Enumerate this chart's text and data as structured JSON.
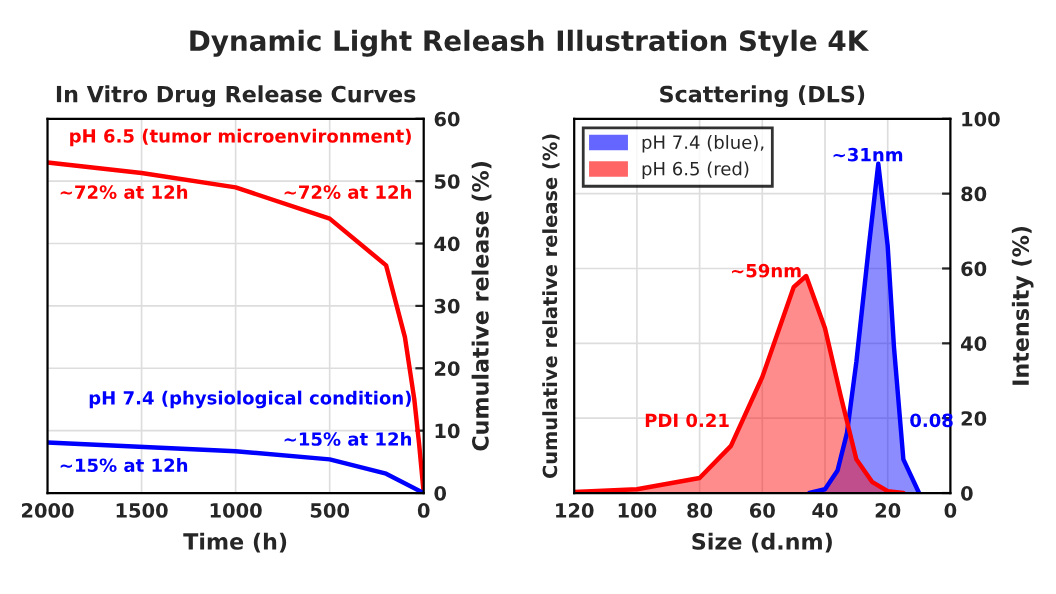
{
  "chart_data": [
    {
      "type": "line",
      "title": "Dynamic Light Releash Illustration Style 4K",
      "subtitle": "In Vitro Drug Release Curves",
      "xlabel": "Time (h)",
      "ylabel": "Cumulative release (%)",
      "xlim": [
        2000,
        0
      ],
      "xticks": [
        2000,
        1500,
        1000,
        500,
        0
      ],
      "ylim": [
        0,
        60
      ],
      "yticks": [
        0,
        10,
        20,
        30,
        40,
        50,
        60
      ],
      "grid": true,
      "series": [
        {
          "color": "#ff0000",
          "x": [
            0,
            25,
            50,
            100,
            200,
            500,
            1000,
            1500,
            2000
          ],
          "values": [
            0,
            8,
            15,
            25,
            36.5,
            44,
            49,
            51.3,
            53
          ]
        },
        {
          "color": "#0000ff",
          "x": [
            0,
            200,
            500,
            1000,
            2000
          ],
          "values": [
            0,
            3.1,
            5.4,
            6.7,
            8.1
          ]
        }
      ],
      "annotations": [
        "pH 6.5 (tumor microenvironment)",
        "~72% at 12h",
        "~72% at 12h",
        "pH 7.4 (physiological condition)",
        "~15% at 12h",
        "~15% at 12h"
      ]
    },
    {
      "type": "area",
      "subtitle": "Scattering (DLS)",
      "xlabel": "Size (d.nm)",
      "ylabel": "Intensity (%)",
      "xlim": [
        120,
        0
      ],
      "xticks": [
        120,
        100,
        80,
        60,
        40,
        20,
        0
      ],
      "ylim": [
        0,
        100
      ],
      "yticks": [
        0,
        20,
        40,
        60,
        80,
        100
      ],
      "grid": true,
      "legend": "top left",
      "series": [
        {
          "name": "pH 7.4 (blue),",
          "color": "#0000ff",
          "x": [
            10,
            15,
            18,
            20,
            23,
            26,
            30,
            33,
            36,
            40,
            45
          ],
          "values": [
            0,
            9,
            39,
            66,
            88,
            66,
            35,
            16,
            6,
            1,
            0
          ]
        },
        {
          "name": "pH 6.5 (red)",
          "color": "#ff0000",
          "x": [
            15,
            20,
            25,
            30,
            35,
            40,
            46,
            50,
            60,
            70,
            80,
            100,
            120
          ],
          "values": [
            0,
            0.5,
            3,
            9,
            26,
            44,
            58,
            55,
            31,
            12.6,
            4,
            1,
            0.3
          ]
        }
      ],
      "annotations": [
        "~31nm",
        "~59nm",
        "PDI 0.21",
        "0.08",
        "Cumulative relative release (%)"
      ]
    }
  ]
}
